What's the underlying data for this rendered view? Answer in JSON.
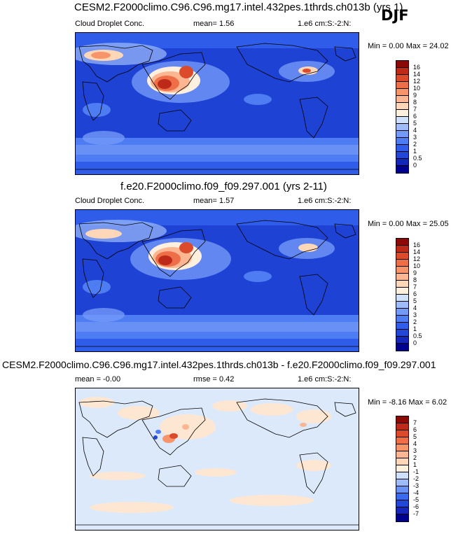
{
  "season_label": "DJF",
  "colors": {
    "abs_scale": [
      "#00008f",
      "#1427b8",
      "#2246d6",
      "#2f5ce8",
      "#4e7cf2",
      "#7499f7",
      "#9ebcfa",
      "#cfe0fd",
      "#fef0dd",
      "#fed6b8",
      "#fcb691",
      "#f89469",
      "#ee6f47",
      "#dc4a2c",
      "#bd2a18",
      "#8b0a05"
    ],
    "diff_scale": [
      "#00008f",
      "#1427b8",
      "#2246d6",
      "#3a6aee",
      "#6a92f5",
      "#9ebcfa",
      "#cfe0fd",
      "#fef0dd",
      "#fed6b8",
      "#fcb691",
      "#f89469",
      "#ee6f47",
      "#dc4a2c",
      "#bd2a18",
      "#8b0a05"
    ]
  },
  "panels": [
    {
      "title": "CESM2.F2000climo.C96.C96.mg17.intel.432pes.1thrds.ch013b (yrs 1)",
      "left_label": "Cloud Droplet Conc.",
      "mean_text": "mean=   1.56",
      "units_text": "1.e6 cm:S:-2:N:",
      "minmax_text": "Min =   0.00 Max =  24.02",
      "levels": [
        "16",
        "14",
        "12",
        "10",
        "9",
        "8",
        "7",
        "6",
        "5",
        "4",
        "3",
        "2",
        "1",
        "0.5",
        "0"
      ]
    },
    {
      "title": "f.e20.F2000climo.f09_f09.297.001 (yrs 2-11)",
      "left_label": "Cloud Droplet Conc.",
      "mean_text": "mean=   1.57",
      "units_text": "1.e6 cm:S:-2:N:",
      "minmax_text": "Min =   0.00 Max =  25.05",
      "levels": [
        "16",
        "14",
        "12",
        "10",
        "9",
        "8",
        "7",
        "6",
        "5",
        "4",
        "3",
        "2",
        "1",
        "0.5",
        "0"
      ]
    },
    {
      "title": "CESM2.F2000climo.C96.C96.mg17.intel.432pes.1thrds.ch013b - f.e20.F2000climo.f09_f09.297.001",
      "left_label": "mean =  -0.00",
      "mean_text": "rmse =   0.42",
      "units_text": "1.e6 cm:S:-2:N:",
      "minmax_text": "Min =  -8.16 Max =   6.02",
      "levels": [
        "7",
        "6",
        "5",
        "4",
        "3",
        "2",
        "1",
        "-1",
        "-2",
        "-3",
        "-4",
        "-5",
        "-6",
        "-7"
      ]
    }
  ]
}
